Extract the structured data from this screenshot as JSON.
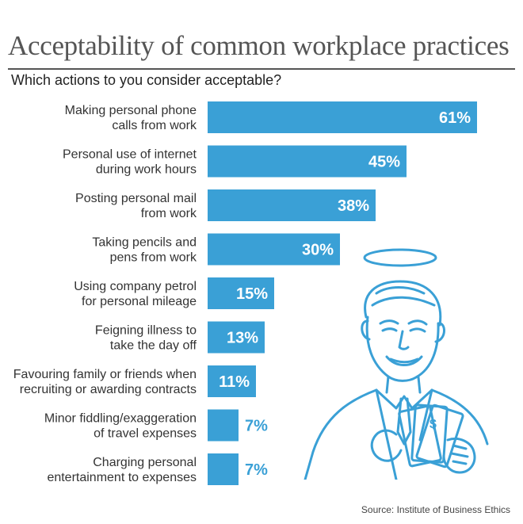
{
  "title": "Acceptability of common workplace practices",
  "subtitle": "Which actions to you consider acceptable?",
  "source": "Source: Institute of Business Ethics",
  "colors": {
    "bar": "#3aa0d6",
    "value_on_bar": "#ffffff",
    "value_outside": "#3aa0d6",
    "title": "#555555"
  },
  "chart_data": {
    "type": "bar",
    "orientation": "horizontal",
    "categories": [
      [
        "Making personal phone",
        "calls from work"
      ],
      [
        "Personal use of internet",
        "during work hours"
      ],
      [
        "Posting personal mail",
        "from work"
      ],
      [
        "Taking pencils and",
        "pens from work"
      ],
      [
        "Using company petrol",
        "for personal mileage"
      ],
      [
        "Feigning illness to",
        "take the day off"
      ],
      [
        "Favouring family or friends when",
        "recruiting or awarding contracts"
      ],
      [
        "Minor fiddling/exaggeration",
        "of travel expenses"
      ],
      [
        "Charging personal",
        "entertainment to expenses"
      ]
    ],
    "values": [
      61,
      45,
      38,
      30,
      15,
      13,
      11,
      7,
      7
    ],
    "value_labels": [
      "61%",
      "45%",
      "38%",
      "30%",
      "15%",
      "13%",
      "11%",
      "7%",
      "7%"
    ],
    "xlim": [
      0,
      61
    ],
    "grid": false,
    "legend": "none"
  },
  "illustration": {
    "icon": "man-with-halo-holding-cash-icon"
  }
}
